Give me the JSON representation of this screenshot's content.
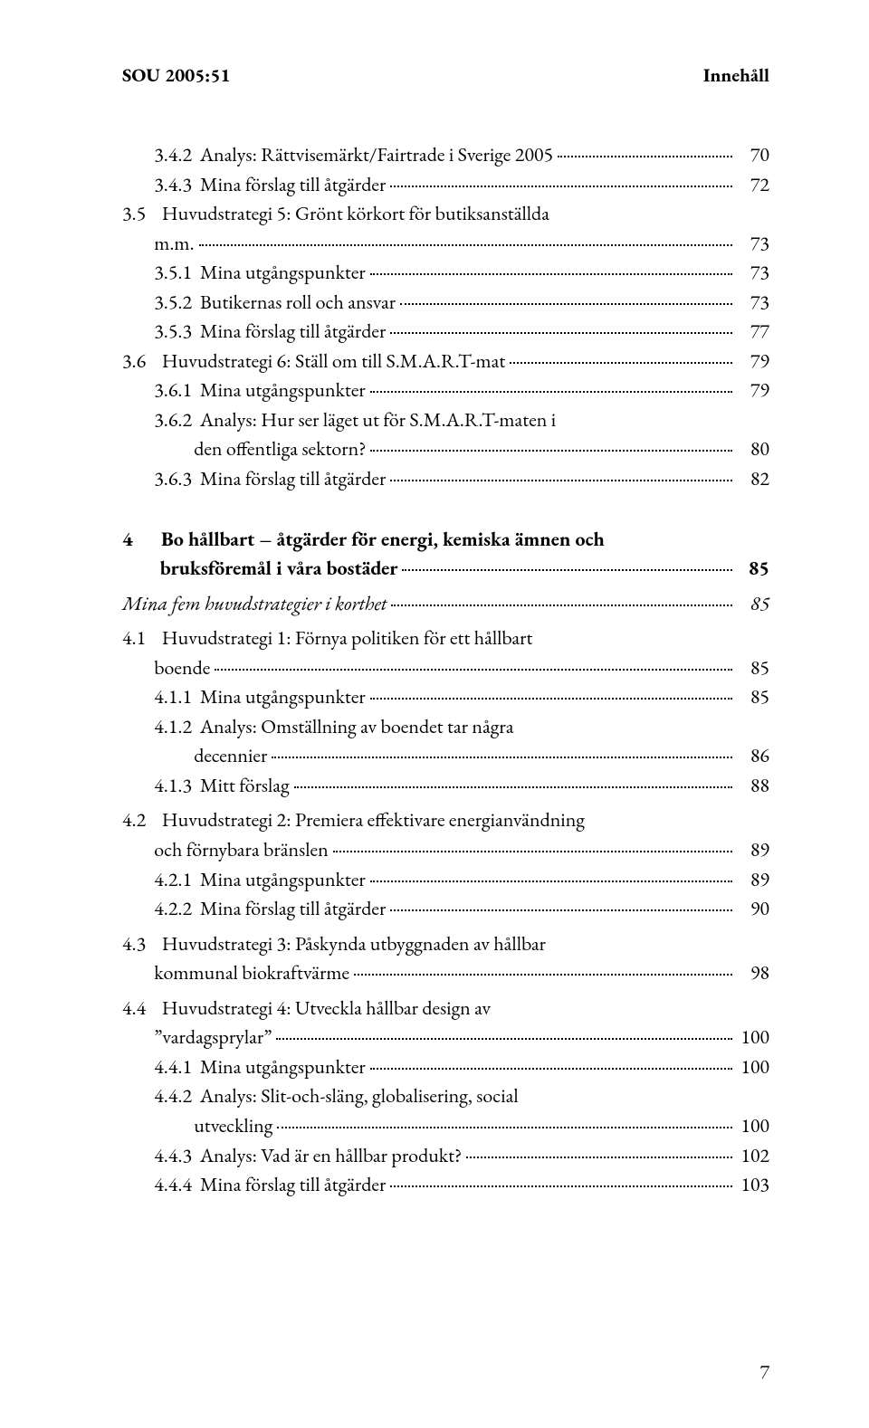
{
  "header": {
    "left": "SOU 2005:51",
    "right": "Innehåll"
  },
  "footer_page": "7",
  "lines": [
    {
      "style": "gap-small"
    },
    {
      "num_pad": "        ",
      "num": "3.4.2",
      "sep": "  ",
      "title": "Analys: Rättvisemärkt/Fairtrade i Sverige 2005",
      "page": "70"
    },
    {
      "num_pad": "        ",
      "num": "3.4.3",
      "sep": "  ",
      "title": "Mina förslag till åtgärder",
      "page": "72"
    },
    {
      "num_pad": "",
      "num": "3.5",
      "sep": "    ",
      "title": "Huvudstrategi 5: Grönt körkort för butiksanställda",
      "nowrap": false
    },
    {
      "num_pad": "        ",
      "num": "",
      "sep": "",
      "title": "m.m.",
      "page": "73"
    },
    {
      "num_pad": "        ",
      "num": "3.5.1",
      "sep": "  ",
      "title": "Mina utgångspunkter",
      "page": "73"
    },
    {
      "num_pad": "        ",
      "num": "3.5.2",
      "sep": "  ",
      "title": "Butikernas roll och ansvar",
      "page": "73"
    },
    {
      "num_pad": "        ",
      "num": "3.5.3",
      "sep": "  ",
      "title": "Mina förslag till åtgärder",
      "page": "77"
    },
    {
      "num_pad": "",
      "num": "3.6",
      "sep": "    ",
      "title": "Huvudstrategi 6: Ställ om till S.M.A.R.T-mat",
      "page": "79"
    },
    {
      "num_pad": "        ",
      "num": "3.6.1",
      "sep": "  ",
      "title": "Mina utgångspunkter",
      "page": "79"
    },
    {
      "num_pad": "        ",
      "num": "3.6.2",
      "sep": "  ",
      "title": "Analys: Hur ser läget ut för S.M.A.R.T-maten i"
    },
    {
      "num_pad": "                  ",
      "num": "",
      "sep": "",
      "title": "den offentliga sektorn?",
      "page": "80"
    },
    {
      "num_pad": "        ",
      "num": "3.6.3",
      "sep": "  ",
      "title": "Mina förslag till åtgärder",
      "page": "82"
    },
    {
      "style": "gap-large"
    },
    {
      "bold": true,
      "num_pad": "",
      "num": "4",
      "sep": "      ",
      "title": "Bo hållbart – åtgärder för energi, kemiska ämnen och"
    },
    {
      "bold": true,
      "num_pad": "        ",
      "num": "",
      "sep": "",
      "title": "bruksföremål i våra bostäder",
      "page": "85"
    },
    {
      "style": "gap-small"
    },
    {
      "italic": true,
      "num_pad": "",
      "num": "",
      "sep": "",
      "title": "Mina fem huvudstrategier i korthet",
      "page": "85"
    },
    {
      "style": "gap-small"
    },
    {
      "num_pad": "",
      "num": "4.1",
      "sep": "    ",
      "title": "Huvudstrategi 1: Förnya politiken för ett hållbart"
    },
    {
      "num_pad": "        ",
      "num": "",
      "sep": "",
      "title": "boende",
      "page": "85"
    },
    {
      "num_pad": "        ",
      "num": "4.1.1",
      "sep": "  ",
      "title": "Mina utgångspunkter",
      "page": "85"
    },
    {
      "num_pad": "        ",
      "num": "4.1.2",
      "sep": "  ",
      "title": "Analys: Omställning av boendet tar några"
    },
    {
      "num_pad": "                  ",
      "num": "",
      "sep": "",
      "title": "decennier",
      "page": "86"
    },
    {
      "num_pad": "        ",
      "num": "4.1.3",
      "sep": "  ",
      "title": "Mitt förslag",
      "page": "88"
    },
    {
      "style": "gap-small"
    },
    {
      "num_pad": "",
      "num": "4.2",
      "sep": "    ",
      "title": "Huvudstrategi 2: Premiera effektivare energianvändning"
    },
    {
      "num_pad": "        ",
      "num": "",
      "sep": "",
      "title": "och förnybara bränslen",
      "page": "89"
    },
    {
      "num_pad": "        ",
      "num": "4.2.1",
      "sep": "  ",
      "title": "Mina utgångspunkter",
      "page": "89"
    },
    {
      "num_pad": "        ",
      "num": "4.2.2",
      "sep": "  ",
      "title": "Mina förslag till åtgärder",
      "page": "90"
    },
    {
      "style": "gap-small"
    },
    {
      "num_pad": "",
      "num": "4.3",
      "sep": "    ",
      "title": "Huvudstrategi 3: Påskynda utbyggnaden av hållbar"
    },
    {
      "num_pad": "        ",
      "num": "",
      "sep": "",
      "title": "kommunal biokraftvärme",
      "page": "98"
    },
    {
      "style": "gap-small"
    },
    {
      "num_pad": "",
      "num": "4.4",
      "sep": "    ",
      "title": "Huvudstrategi 4: Utveckla hållbar design av"
    },
    {
      "num_pad": "        ",
      "num": "",
      "sep": "",
      "title": "”vardagsprylar”",
      "page": "100"
    },
    {
      "num_pad": "        ",
      "num": "4.4.1",
      "sep": "  ",
      "title": "Mina utgångspunkter",
      "page": "100"
    },
    {
      "num_pad": "        ",
      "num": "4.4.2",
      "sep": "  ",
      "title": "Analys: Slit-och-släng, globalisering, social"
    },
    {
      "num_pad": "                  ",
      "num": "",
      "sep": "",
      "title": "utveckling",
      "page": "100"
    },
    {
      "num_pad": "        ",
      "num": "4.4.3",
      "sep": "  ",
      "title": "Analys: Vad är en hållbar produkt?",
      "page": "102"
    },
    {
      "num_pad": "        ",
      "num": "4.4.4",
      "sep": "  ",
      "title": "Mina förslag till åtgärder",
      "page": "103"
    }
  ]
}
